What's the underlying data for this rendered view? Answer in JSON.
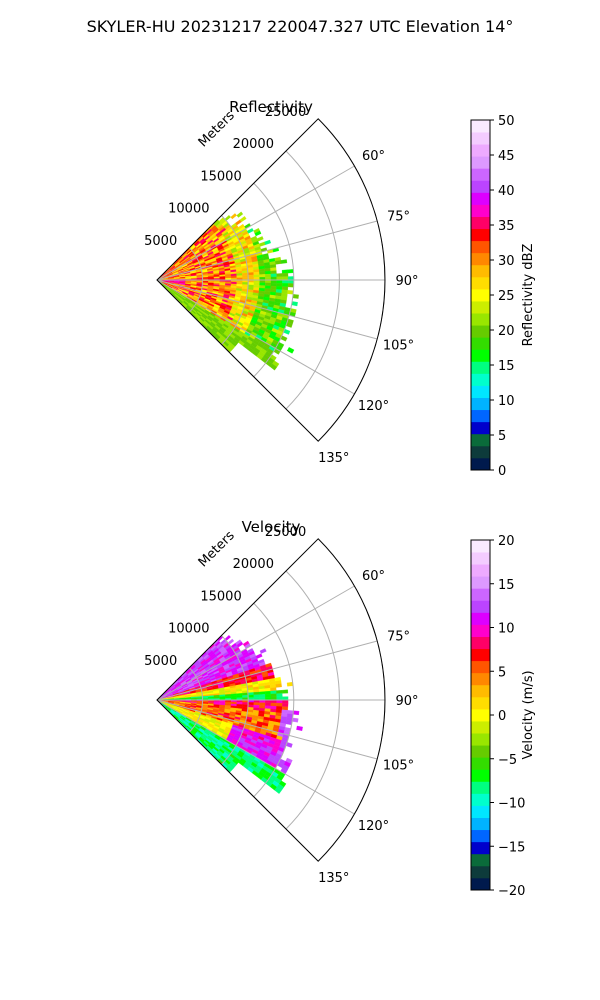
{
  "figure": {
    "title": "SKYLER-HU  20231217  220047.327 UTC Elevation 14°"
  },
  "chart_data": [
    {
      "type": "heatmap",
      "projection": "polar-sector",
      "title": "Reflectivity",
      "radial_label": "Meters",
      "theta_ticks": [
        "60°",
        "75°",
        "90°",
        "105°",
        "120°",
        "135°"
      ],
      "theta_tick_values": [
        60,
        75,
        90,
        105,
        120,
        135
      ],
      "theta_range": [
        45,
        135
      ],
      "radial_ticks": [
        "5000",
        "10000",
        "15000",
        "20000",
        "25000"
      ],
      "radial_tick_values": [
        5000,
        10000,
        15000,
        20000,
        25000
      ],
      "radial_range": [
        0,
        25000
      ],
      "grid": true,
      "colorbar": {
        "label": "Reflectivity dBZ",
        "range": [
          0,
          50
        ],
        "ticks": [
          "0",
          "5",
          "10",
          "15",
          "20",
          "25",
          "30",
          "35",
          "40",
          "45",
          "50"
        ],
        "tick_values": [
          0,
          5,
          10,
          15,
          20,
          25,
          30,
          35,
          40,
          45,
          50
        ],
        "colors": [
          "#001a4d",
          "#0d3b3b",
          "#0a6b3a",
          "#0000cc",
          "#0066ff",
          "#00b3ff",
          "#00e6ff",
          "#00ffcc",
          "#00ff80",
          "#00ff00",
          "#33dd00",
          "#66cc00",
          "#99e600",
          "#ccee00",
          "#ffff00",
          "#ffdd00",
          "#ffbb00",
          "#ff8800",
          "#ff5500",
          "#ff0000",
          "#ff0066",
          "#ff00cc",
          "#dd00ff",
          "#bb44ff",
          "#cc66ff",
          "#dd99ff",
          "#eeaaff",
          "#f4ccff",
          "#faeaff"
        ]
      }
    },
    {
      "type": "heatmap",
      "projection": "polar-sector",
      "title": "Velocity",
      "radial_label": "Meters",
      "theta_ticks": [
        "60°",
        "75°",
        "90°",
        "105°",
        "120°",
        "135°"
      ],
      "theta_tick_values": [
        60,
        75,
        90,
        105,
        120,
        135
      ],
      "theta_range": [
        45,
        135
      ],
      "radial_ticks": [
        "5000",
        "10000",
        "15000",
        "20000",
        "25000"
      ],
      "radial_tick_values": [
        5000,
        10000,
        15000,
        20000,
        25000
      ],
      "radial_range": [
        0,
        25000
      ],
      "grid": true,
      "colorbar": {
        "label": "Velocity (m/s)",
        "range": [
          -20,
          20
        ],
        "ticks": [
          "−20",
          "−15",
          "−10",
          "−5",
          "0",
          "5",
          "10",
          "15",
          "20"
        ],
        "tick_values": [
          -20,
          -15,
          -10,
          -5,
          0,
          5,
          10,
          15,
          20
        ],
        "colors": [
          "#001a4d",
          "#0d3b3b",
          "#0a6b3a",
          "#0000cc",
          "#0066ff",
          "#00b3ff",
          "#00e6ff",
          "#00ffcc",
          "#00ff80",
          "#00ff00",
          "#33dd00",
          "#66cc00",
          "#99e600",
          "#ccee00",
          "#ffff00",
          "#ffdd00",
          "#ffbb00",
          "#ff8800",
          "#ff5500",
          "#ff0000",
          "#ff0066",
          "#ff00cc",
          "#dd00ff",
          "#bb44ff",
          "#cc66ff",
          "#dd99ff",
          "#eeaaff",
          "#f4ccff",
          "#faeaff"
        ]
      }
    }
  ]
}
